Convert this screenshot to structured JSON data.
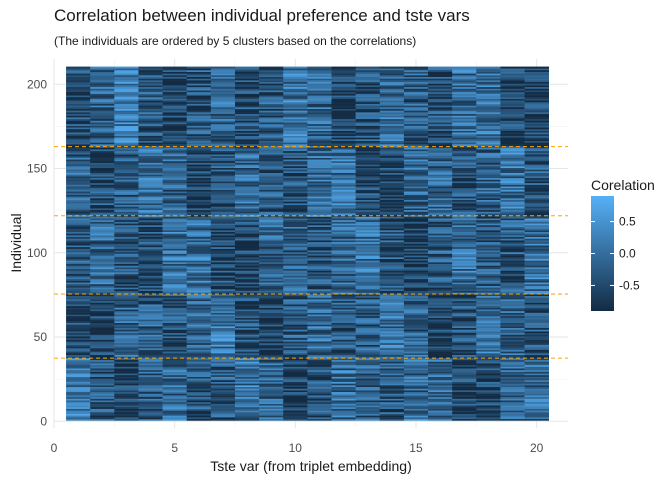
{
  "chart_data": {
    "type": "heatmap",
    "title": "Correlation between individual preference and tste vars",
    "subtitle": "(The individuals are ordered by 5 clusters based on the correlations)",
    "xlabel": "Tste var (from triplet embedding)",
    "ylabel": "Individual",
    "x_ticks": [
      "0",
      "5",
      "10",
      "15",
      "20"
    ],
    "y_ticks": [
      "0",
      "50",
      "100",
      "150",
      "200"
    ],
    "xlim": [
      0,
      21.3
    ],
    "ylim": [
      -4,
      215
    ],
    "n_vars": 20,
    "n_individuals": 210,
    "cluster_boundaries": [
      37.5,
      75.5,
      122,
      163
    ],
    "boundary_color": "#FFA500",
    "grid": true,
    "legend": {
      "title": "Corelation",
      "ticks": [
        "0.5",
        "0.0",
        "-0.5"
      ],
      "placement": "right",
      "low_color": "#132B43",
      "high_color": "#56B1F7",
      "range": [
        -0.9,
        0.9
      ]
    }
  }
}
